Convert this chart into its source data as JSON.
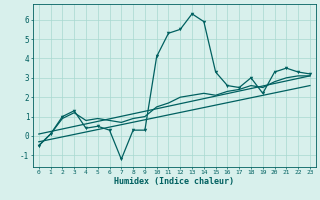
{
  "xlabel": "Humidex (Indice chaleur)",
  "bg_color": "#d8f0ec",
  "line_color": "#006060",
  "grid_color": "#a8d8d0",
  "xlim": [
    -0.5,
    23.5
  ],
  "ylim": [
    -1.6,
    6.8
  ],
  "xticks": [
    0,
    1,
    2,
    3,
    4,
    5,
    6,
    7,
    8,
    9,
    10,
    11,
    12,
    13,
    14,
    15,
    16,
    17,
    18,
    19,
    20,
    21,
    22,
    23
  ],
  "yticks": [
    -1,
    0,
    1,
    2,
    3,
    4,
    5,
    6
  ],
  "series1_x": [
    0,
    1,
    2,
    3,
    4,
    5,
    6,
    7,
    8,
    9,
    10,
    11,
    12,
    13,
    14,
    15,
    16,
    17,
    18,
    19,
    20,
    21,
    22,
    23
  ],
  "series1_y": [
    -0.5,
    0.1,
    1.0,
    1.3,
    0.4,
    0.5,
    0.3,
    -1.2,
    0.3,
    0.3,
    4.1,
    5.3,
    5.5,
    6.3,
    5.9,
    3.3,
    2.6,
    2.5,
    3.0,
    2.2,
    3.3,
    3.5,
    3.3,
    3.2
  ],
  "series2_x": [
    0,
    1,
    2,
    3,
    4,
    5,
    6,
    7,
    8,
    9,
    10,
    11,
    12,
    13,
    14,
    15,
    16,
    17,
    18,
    19,
    20,
    21,
    22,
    23
  ],
  "series2_y": [
    -0.5,
    0.1,
    0.9,
    1.2,
    0.8,
    0.9,
    0.8,
    0.7,
    0.9,
    1.0,
    1.5,
    1.7,
    2.0,
    2.1,
    2.2,
    2.1,
    2.3,
    2.4,
    2.6,
    2.5,
    2.8,
    3.0,
    3.1,
    3.1
  ],
  "series3_x": [
    0,
    23
  ],
  "series3_y": [
    -0.3,
    2.6
  ],
  "series4_x": [
    0,
    23
  ],
  "series4_y": [
    0.1,
    3.1
  ],
  "marker_size": 2.5,
  "linewidth": 0.9
}
